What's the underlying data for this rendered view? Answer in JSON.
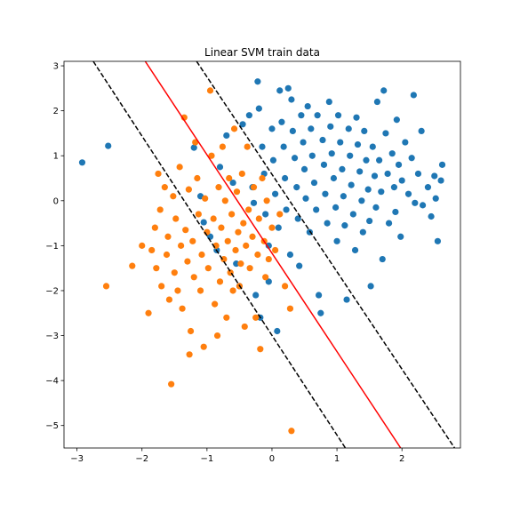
{
  "chart_data": {
    "type": "scatter",
    "title": "Linear SVM train data",
    "xlabel": "",
    "ylabel": "",
    "xlim": [
      -3.2,
      2.9
    ],
    "ylim": [
      -5.5,
      3.1
    ],
    "xticks": [
      -3,
      -2,
      -1,
      0,
      1,
      2
    ],
    "yticks": [
      -5,
      -4,
      -3,
      -2,
      -1,
      0,
      1,
      2,
      3
    ],
    "grid": false,
    "legend": "none",
    "colors": {
      "class_0": "#1f77b4",
      "class_1": "#ff7f0e",
      "boundary": "#ff0000",
      "margin": "#000000"
    },
    "series": [
      {
        "color": "#1f77b4",
        "points": [
          [
            -2.92,
            0.85
          ],
          [
            -2.52,
            1.22
          ],
          [
            -1.2,
            1.18
          ],
          [
            -1.1,
            0.1
          ],
          [
            -1.05,
            -0.48
          ],
          [
            -0.95,
            -0.8
          ],
          [
            -0.85,
            -1.1
          ],
          [
            -0.8,
            0.75
          ],
          [
            -0.7,
            1.45
          ],
          [
            -0.6,
            0.4
          ],
          [
            -0.55,
            -1.4
          ],
          [
            -0.5,
            -1.9
          ],
          [
            -0.45,
            1.7
          ],
          [
            -0.35,
            1.9
          ],
          [
            -0.3,
            0.3
          ],
          [
            -0.28,
            -0.05
          ],
          [
            -0.25,
            -2.1
          ],
          [
            -0.2,
            2.05
          ],
          [
            -0.22,
            2.65
          ],
          [
            -0.18,
            -2.6
          ],
          [
            -0.15,
            1.2
          ],
          [
            -0.12,
            0.6
          ],
          [
            -0.1,
            -0.3
          ],
          [
            -0.05,
            -1.0
          ],
          [
            -0.05,
            -1.8
          ],
          [
            0.0,
            1.6
          ],
          [
            0.02,
            0.9
          ],
          [
            0.05,
            0.15
          ],
          [
            0.08,
            -2.9
          ],
          [
            0.1,
            -0.6
          ],
          [
            0.12,
            2.45
          ],
          [
            0.15,
            1.75
          ],
          [
            0.18,
            1.2
          ],
          [
            0.2,
            0.5
          ],
          [
            0.22,
            -0.2
          ],
          [
            0.25,
            2.5
          ],
          [
            0.28,
            -1.2
          ],
          [
            0.3,
            2.25
          ],
          [
            0.32,
            1.55
          ],
          [
            0.35,
            0.95
          ],
          [
            0.38,
            0.3
          ],
          [
            0.4,
            -0.4
          ],
          [
            0.42,
            -1.45
          ],
          [
            0.45,
            1.9
          ],
          [
            0.48,
            1.3
          ],
          [
            0.5,
            0.7
          ],
          [
            0.52,
            0.05
          ],
          [
            0.55,
            2.1
          ],
          [
            0.58,
            -0.7
          ],
          [
            0.6,
            1.6
          ],
          [
            0.62,
            1.0
          ],
          [
            0.65,
            0.4
          ],
          [
            0.68,
            -0.2
          ],
          [
            0.7,
            1.9
          ],
          [
            0.72,
            -2.1
          ],
          [
            0.75,
            -2.5
          ],
          [
            0.78,
            1.35
          ],
          [
            0.8,
            0.8
          ],
          [
            0.82,
            0.15
          ],
          [
            0.85,
            -0.5
          ],
          [
            0.88,
            2.2
          ],
          [
            0.9,
            1.65
          ],
          [
            0.92,
            1.05
          ],
          [
            0.95,
            0.5
          ],
          [
            0.98,
            -0.15
          ],
          [
            1.0,
            -0.9
          ],
          [
            1.02,
            1.9
          ],
          [
            1.05,
            1.3
          ],
          [
            1.08,
            0.7
          ],
          [
            1.1,
            0.1
          ],
          [
            1.12,
            -0.55
          ],
          [
            1.15,
            -2.2
          ],
          [
            1.18,
            1.6
          ],
          [
            1.2,
            1.0
          ],
          [
            1.22,
            0.35
          ],
          [
            1.25,
            -0.3
          ],
          [
            1.28,
            -1.1
          ],
          [
            1.3,
            1.85
          ],
          [
            1.32,
            1.25
          ],
          [
            1.35,
            0.65
          ],
          [
            1.38,
            0.0
          ],
          [
            1.4,
            -0.7
          ],
          [
            1.42,
            1.55
          ],
          [
            1.45,
            0.9
          ],
          [
            1.48,
            0.25
          ],
          [
            1.5,
            -0.45
          ],
          [
            1.52,
            -1.9
          ],
          [
            1.55,
            1.2
          ],
          [
            1.58,
            0.55
          ],
          [
            1.6,
            -0.15
          ],
          [
            1.62,
            2.2
          ],
          [
            1.65,
            0.9
          ],
          [
            1.68,
            0.2
          ],
          [
            1.7,
            -1.3
          ],
          [
            1.72,
            2.45
          ],
          [
            1.75,
            1.5
          ],
          [
            1.78,
            0.6
          ],
          [
            1.8,
            -0.5
          ],
          [
            1.85,
            1.05
          ],
          [
            1.88,
            0.3
          ],
          [
            1.9,
            -0.25
          ],
          [
            1.92,
            1.8
          ],
          [
            1.95,
            0.8
          ],
          [
            1.98,
            -0.8
          ],
          [
            2.0,
            0.45
          ],
          [
            2.05,
            1.3
          ],
          [
            2.1,
            0.15
          ],
          [
            2.15,
            0.95
          ],
          [
            2.18,
            2.35
          ],
          [
            2.2,
            -0.05
          ],
          [
            2.25,
            0.6
          ],
          [
            2.3,
            1.55
          ],
          [
            2.32,
            -0.1
          ],
          [
            2.4,
            0.3
          ],
          [
            2.45,
            -0.35
          ],
          [
            2.5,
            0.55
          ],
          [
            2.52,
            0.05
          ],
          [
            2.55,
            -0.9
          ],
          [
            2.6,
            0.45
          ],
          [
            2.62,
            0.8
          ]
        ]
      },
      {
        "color": "#ff7f0e",
        "points": [
          [
            -2.55,
            -1.9
          ],
          [
            -2.15,
            -1.45
          ],
          [
            -2.0,
            -1.0
          ],
          [
            -1.9,
            -2.5
          ],
          [
            -1.85,
            -1.1
          ],
          [
            -1.8,
            -0.6
          ],
          [
            -1.78,
            -1.5
          ],
          [
            -1.75,
            0.6
          ],
          [
            -1.72,
            -0.2
          ],
          [
            -1.7,
            -1.9
          ],
          [
            -1.65,
            0.3
          ],
          [
            -1.62,
            -1.2
          ],
          [
            -1.6,
            -0.8
          ],
          [
            -1.58,
            -2.2
          ],
          [
            -1.55,
            -4.08
          ],
          [
            -1.52,
            0.1
          ],
          [
            -1.5,
            -1.6
          ],
          [
            -1.48,
            -0.4
          ],
          [
            -1.45,
            -2.0
          ],
          [
            -1.42,
            0.75
          ],
          [
            -1.4,
            -1.0
          ],
          [
            -1.38,
            -2.4
          ],
          [
            -1.35,
            1.85
          ],
          [
            -1.33,
            -0.65
          ],
          [
            -1.3,
            -1.35
          ],
          [
            -1.28,
            0.25
          ],
          [
            -1.27,
            -3.42
          ],
          [
            -1.25,
            -2.9
          ],
          [
            -1.22,
            -0.9
          ],
          [
            -1.2,
            -1.7
          ],
          [
            -1.18,
            1.3
          ],
          [
            -1.15,
            0.5
          ],
          [
            -1.13,
            -0.3
          ],
          [
            -1.1,
            -2.0
          ],
          [
            -1.08,
            -1.2
          ],
          [
            -1.05,
            -3.25
          ],
          [
            -1.03,
            0.05
          ],
          [
            -1.0,
            -0.7
          ],
          [
            -0.98,
            -1.5
          ],
          [
            -0.95,
            2.45
          ],
          [
            -0.93,
            1.0
          ],
          [
            -0.9,
            -0.4
          ],
          [
            -0.88,
            -2.3
          ],
          [
            -0.86,
            -1.0
          ],
          [
            -0.84,
            -3.0
          ],
          [
            -0.82,
            0.3
          ],
          [
            -0.8,
            -1.8
          ],
          [
            -0.78,
            -0.6
          ],
          [
            -0.76,
            1.2
          ],
          [
            -0.74,
            -1.3
          ],
          [
            -0.72,
            0.0
          ],
          [
            -0.7,
            -2.6
          ],
          [
            -0.68,
            -0.9
          ],
          [
            -0.66,
            0.5
          ],
          [
            -0.64,
            -1.6
          ],
          [
            -0.62,
            -0.3
          ],
          [
            -0.6,
            -2.0
          ],
          [
            -0.58,
            1.6
          ],
          [
            -0.56,
            -1.1
          ],
          [
            -0.54,
            0.2
          ],
          [
            -0.52,
            -0.7
          ],
          [
            -0.5,
            -1.9
          ],
          [
            -0.48,
            -1.4
          ],
          [
            -0.46,
            0.6
          ],
          [
            -0.44,
            -0.5
          ],
          [
            -0.42,
            -2.8
          ],
          [
            -0.4,
            -1.0
          ],
          [
            -0.38,
            1.2
          ],
          [
            -0.36,
            -0.2
          ],
          [
            -0.34,
            -1.5
          ],
          [
            -0.3,
            -0.8
          ],
          [
            -0.28,
            0.3
          ],
          [
            -0.25,
            -2.6
          ],
          [
            -0.22,
            -1.2
          ],
          [
            -0.2,
            -0.4
          ],
          [
            -0.18,
            -3.3
          ],
          [
            -0.15,
            0.5
          ],
          [
            -0.12,
            -0.9
          ],
          [
            -0.1,
            -1.7
          ],
          [
            -0.08,
            0.0
          ],
          [
            -0.05,
            -1.3
          ],
          [
            0.0,
            -0.6
          ],
          [
            0.05,
            -1.1
          ],
          [
            0.12,
            -0.3
          ],
          [
            0.2,
            -1.9
          ],
          [
            0.28,
            -2.4
          ],
          [
            0.3,
            -5.12
          ]
        ]
      }
    ],
    "lines": [
      {
        "name": "",
        "color": "#ff0000",
        "dashed": false,
        "from": [
          -1.95,
          3.1
        ],
        "to": [
          1.98,
          -5.5
        ]
      },
      {
        "name": "",
        "color": "#000000",
        "dashed": true,
        "from": [
          -2.75,
          3.1
        ],
        "to": [
          1.13,
          -5.5
        ]
      },
      {
        "name": "",
        "color": "#000000",
        "dashed": true,
        "from": [
          -1.16,
          3.1
        ],
        "to": [
          2.81,
          -5.5
        ]
      }
    ]
  }
}
